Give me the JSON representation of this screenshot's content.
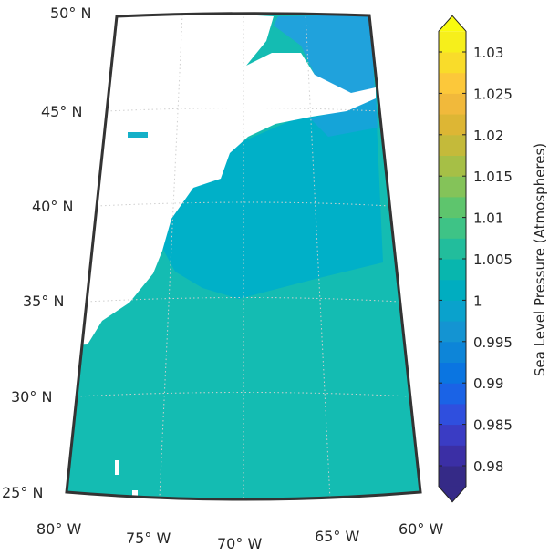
{
  "map": {
    "lat_labels": [
      "50° N",
      "45° N",
      "40° N",
      "35° N",
      "30° N",
      "25° N"
    ],
    "lon_labels": [
      "80° W",
      "75° W",
      "70° W",
      "65° W",
      "60° W"
    ]
  },
  "colorbar": {
    "label": "Sea Level Pressure (Atmospheres)",
    "lim": [
      0.9775,
      1.0325
    ],
    "ticks": [
      0.98,
      0.985,
      0.99,
      0.995,
      1,
      1.005,
      1.01,
      1.015,
      1.02,
      1.025,
      1.03
    ],
    "colors": [
      "#352a87",
      "#3b2fa5",
      "#3a3cc4",
      "#2f4fde",
      "#1a63e6",
      "#0a75e1",
      "#0d85d8",
      "#1494d2",
      "#0aa2cc",
      "#00adc0",
      "#08b6ae",
      "#22bd9c",
      "#3ec386",
      "#5ec56d",
      "#84c359",
      "#a6bf46",
      "#c4ba3a",
      "#ddb634",
      "#f1b93b",
      "#fcc83a",
      "#f9dc2a",
      "#f6ef1b"
    ],
    "under_color": "#352a87",
    "over_color": "#f9fb0e"
  }
}
